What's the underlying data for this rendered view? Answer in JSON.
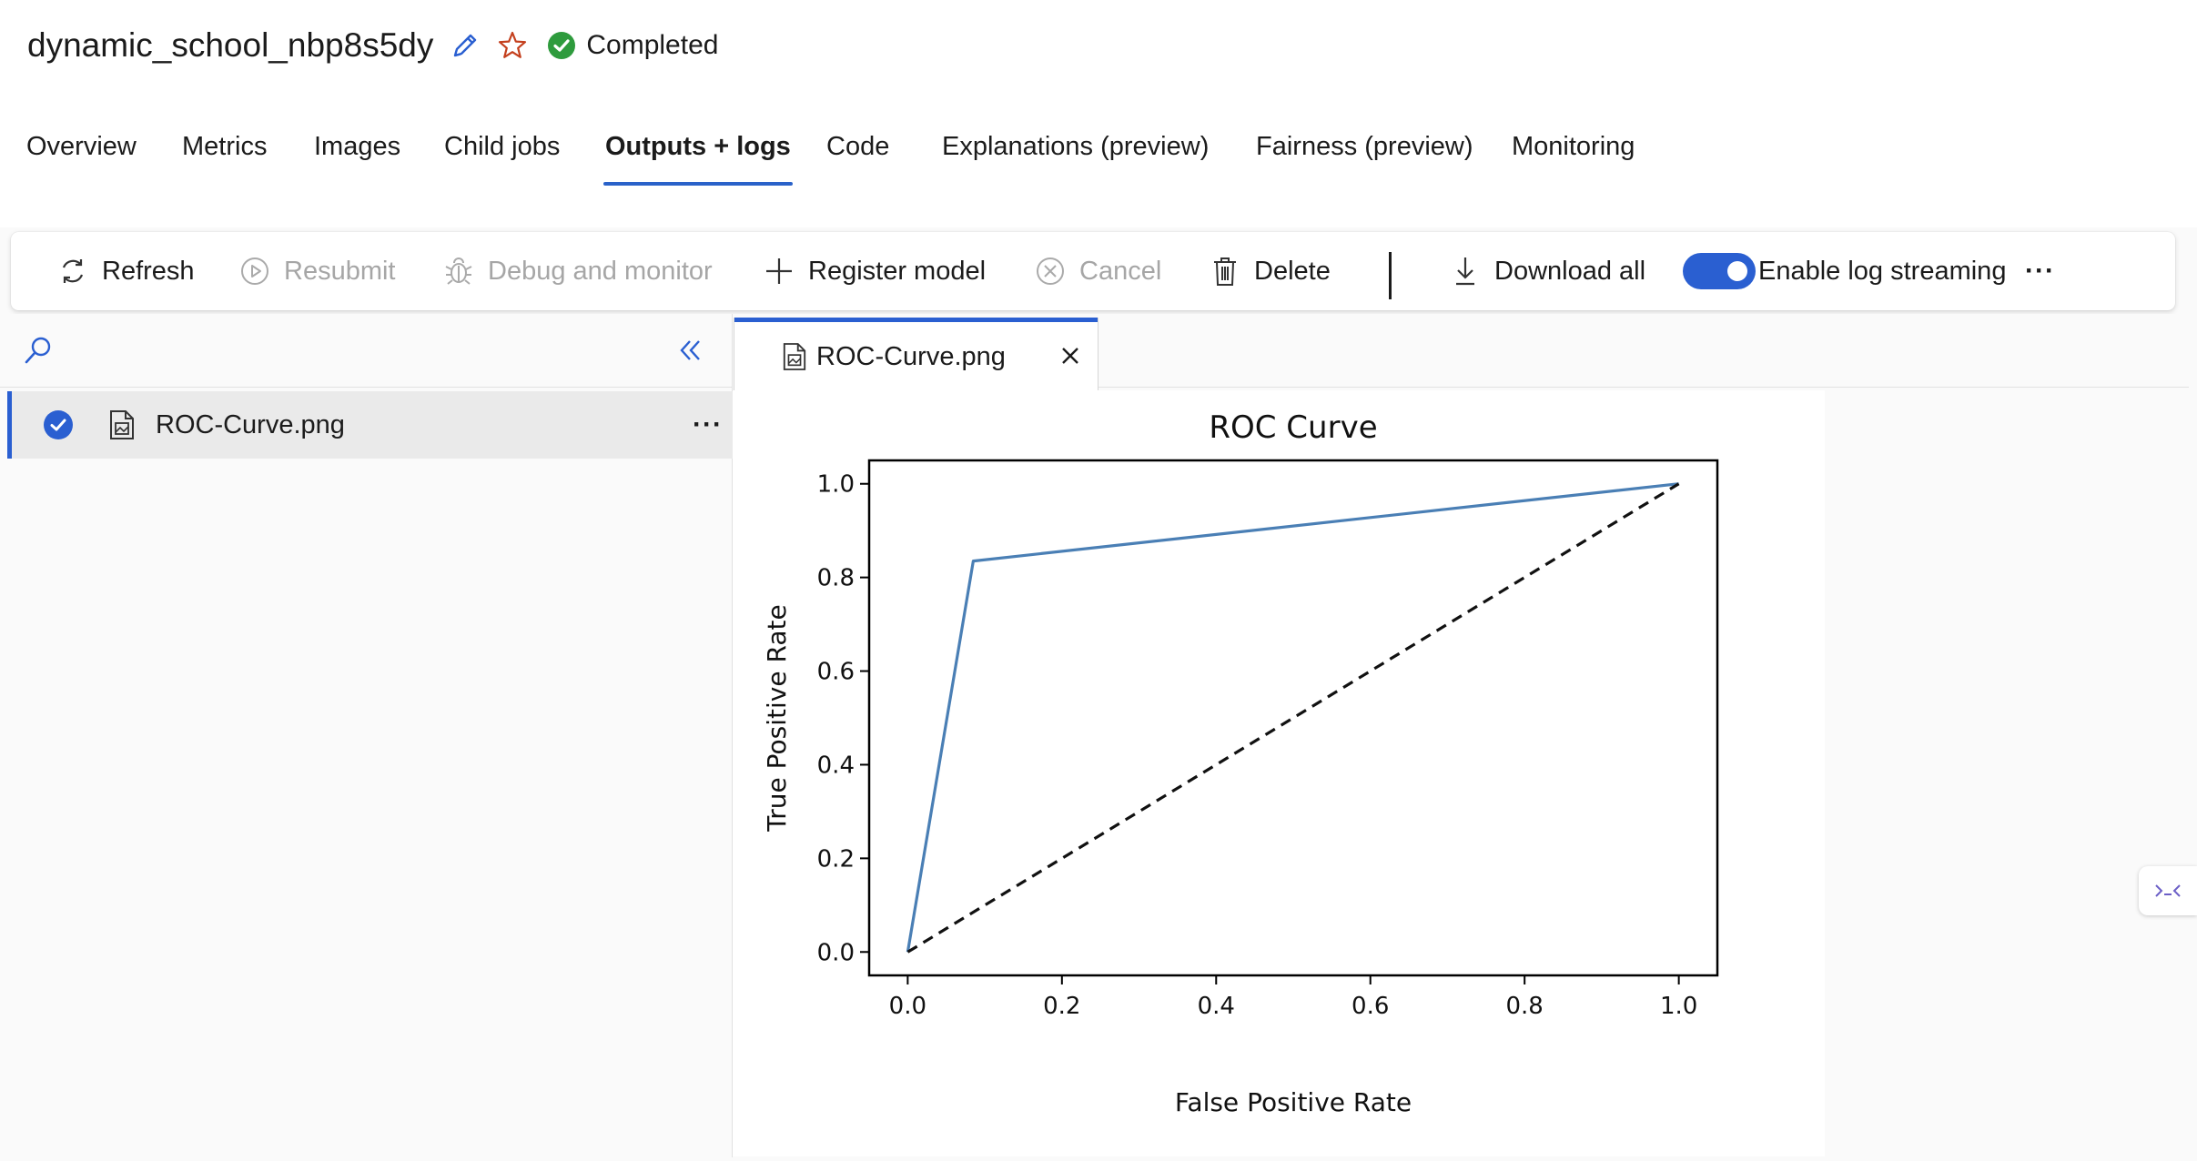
{
  "job": {
    "title": "dynamic_school_nbp8s5dy",
    "status": "Completed",
    "status_color": "#2e9b3d"
  },
  "tabs": [
    {
      "label": "Overview"
    },
    {
      "label": "Metrics"
    },
    {
      "label": "Images"
    },
    {
      "label": "Child jobs"
    },
    {
      "label": "Outputs + logs",
      "active": true
    },
    {
      "label": "Code"
    },
    {
      "label": "Explanations (preview)"
    },
    {
      "label": "Fairness (preview)"
    },
    {
      "label": "Monitoring"
    }
  ],
  "toolbar": {
    "refresh": "Refresh",
    "resubmit": "Resubmit",
    "debug": "Debug and monitor",
    "register": "Register model",
    "cancel": "Cancel",
    "delete": "Delete",
    "download": "Download all",
    "log_streaming": "Enable log streaming",
    "log_streaming_enabled": true,
    "more": "···"
  },
  "file_tree": {
    "items": [
      {
        "name": "ROC-Curve.png",
        "selected": true,
        "more": "···"
      }
    ]
  },
  "viewer": {
    "open_tab": "ROC-Curve.png",
    "close_icon": "close-icon"
  },
  "accent_color": "#2a5fd1",
  "chart_data": {
    "type": "line",
    "title": "ROC Curve",
    "xlabel": "False Positive Rate",
    "ylabel": "True Positive Rate",
    "xlim": [
      -0.05,
      1.05
    ],
    "ylim": [
      -0.05,
      1.05
    ],
    "xticks": [
      "0.0",
      "0.2",
      "0.4",
      "0.6",
      "0.8",
      "1.0"
    ],
    "yticks": [
      "0.0",
      "0.2",
      "0.4",
      "0.6",
      "0.8",
      "1.0"
    ],
    "grid": false,
    "series": [
      {
        "x": [
          0.0,
          0.085,
          1.0
        ],
        "y": [
          0.0,
          0.835,
          1.0
        ],
        "color": "#4a7fb5",
        "style": "solid"
      },
      {
        "x": [
          0.0,
          1.0
        ],
        "y": [
          0.0,
          1.0
        ],
        "color": "#111111",
        "style": "dashed"
      }
    ]
  }
}
